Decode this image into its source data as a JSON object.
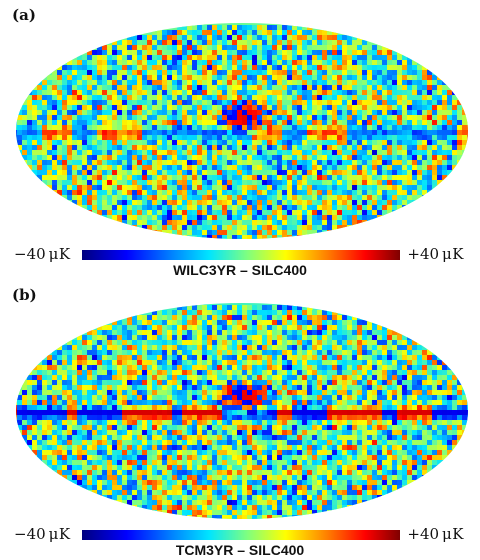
{
  "panels": [
    {
      "label": "(a)",
      "scale_min": "−40 μK",
      "scale_max": "+40 μK",
      "caption": "WILC3YR – SILC400",
      "seed": 17
    },
    {
      "label": "(b)",
      "scale_min": "−40 μK",
      "scale_max": "+40 μK",
      "caption": "TCM3YR – SILC400",
      "seed": 53
    }
  ],
  "colormap": {
    "stops": [
      "#00007f",
      "#0000ff",
      "#0080ff",
      "#00e5ff",
      "#7fff7f",
      "#ffff00",
      "#ff8000",
      "#ff0000",
      "#7f0000"
    ]
  }
}
